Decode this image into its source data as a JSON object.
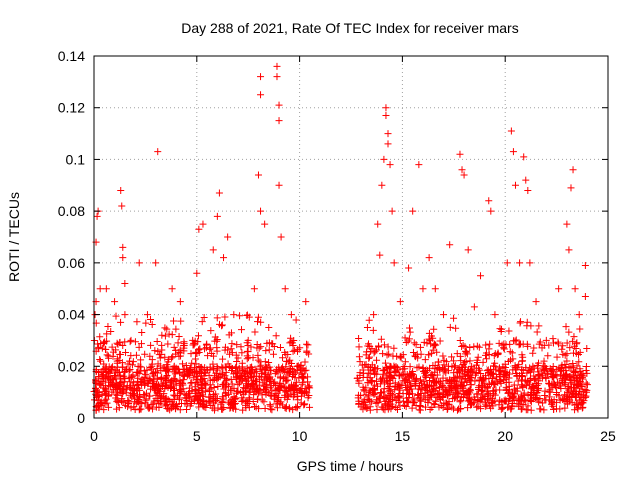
{
  "chart_data": {
    "type": "scatter",
    "title": "Day 288 of 2021, Rate Of TEC Index for receiver mars",
    "xlabel": "GPS time / hours",
    "ylabel": "ROTI / TECUs",
    "xlim": [
      0,
      25
    ],
    "ylim": [
      0,
      0.14
    ],
    "xticks": [
      0,
      5,
      10,
      15,
      20,
      25
    ],
    "yticks": [
      0,
      0.02,
      0.04,
      0.06,
      0.08,
      0.1,
      0.12,
      0.14
    ],
    "xtick_labels": [
      "0",
      "5",
      "10",
      "15",
      "20",
      "25"
    ],
    "ytick_labels": [
      "0",
      "0.02",
      "0.04",
      "0.06",
      "0.08",
      "0.1",
      "0.12",
      "0.14"
    ],
    "grid": true,
    "marker": "+",
    "color": "#ff0000",
    "data_gap_hours": [
      10.5,
      12.8
    ],
    "series": [
      {
        "name": "ROTI",
        "points": [
          [
            0.1,
            0.068
          ],
          [
            0.15,
            0.078
          ],
          [
            0.2,
            0.08
          ],
          [
            0.1,
            0.045
          ],
          [
            0.05,
            0.04
          ],
          [
            0.3,
            0.05
          ],
          [
            0.6,
            0.05
          ],
          [
            1.0,
            0.045
          ],
          [
            1.3,
            0.088
          ],
          [
            1.35,
            0.082
          ],
          [
            1.4,
            0.066
          ],
          [
            1.4,
            0.062
          ],
          [
            1.5,
            0.052
          ],
          [
            1.8,
            0.03
          ],
          [
            2.2,
            0.06
          ],
          [
            2.6,
            0.04
          ],
          [
            3.0,
            0.06
          ],
          [
            3.1,
            0.103
          ],
          [
            3.3,
            0.032
          ],
          [
            3.8,
            0.05
          ],
          [
            4.2,
            0.045
          ],
          [
            4.8,
            0.03
          ],
          [
            5.0,
            0.056
          ],
          [
            5.1,
            0.073
          ],
          [
            5.3,
            0.075
          ],
          [
            5.8,
            0.065
          ],
          [
            6.0,
            0.078
          ],
          [
            6.1,
            0.087
          ],
          [
            6.3,
            0.062
          ],
          [
            6.5,
            0.07
          ],
          [
            6.8,
            0.04
          ],
          [
            7.5,
            0.03
          ],
          [
            7.8,
            0.05
          ],
          [
            8.0,
            0.094
          ],
          [
            8.1,
            0.08
          ],
          [
            8.1,
            0.132
          ],
          [
            8.1,
            0.125
          ],
          [
            8.3,
            0.075
          ],
          [
            8.5,
            0.035
          ],
          [
            8.9,
            0.136
          ],
          [
            8.9,
            0.132
          ],
          [
            9.0,
            0.121
          ],
          [
            9.0,
            0.115
          ],
          [
            9.0,
            0.09
          ],
          [
            9.1,
            0.07
          ],
          [
            9.3,
            0.05
          ],
          [
            9.6,
            0.04
          ],
          [
            10.3,
            0.045
          ],
          [
            13.3,
            0.035
          ],
          [
            13.6,
            0.04
          ],
          [
            13.8,
            0.075
          ],
          [
            13.9,
            0.063
          ],
          [
            14.0,
            0.09
          ],
          [
            14.1,
            0.1
          ],
          [
            14.2,
            0.12
          ],
          [
            14.2,
            0.117
          ],
          [
            14.3,
            0.11
          ],
          [
            14.3,
            0.106
          ],
          [
            14.4,
            0.098
          ],
          [
            14.5,
            0.08
          ],
          [
            14.6,
            0.06
          ],
          [
            14.9,
            0.045
          ],
          [
            15.3,
            0.058
          ],
          [
            15.5,
            0.08
          ],
          [
            15.8,
            0.098
          ],
          [
            16.0,
            0.05
          ],
          [
            16.3,
            0.062
          ],
          [
            16.6,
            0.05
          ],
          [
            17.0,
            0.04
          ],
          [
            17.3,
            0.067
          ],
          [
            17.8,
            0.102
          ],
          [
            17.9,
            0.096
          ],
          [
            18.0,
            0.094
          ],
          [
            18.2,
            0.065
          ],
          [
            18.5,
            0.043
          ],
          [
            18.8,
            0.055
          ],
          [
            19.2,
            0.084
          ],
          [
            19.3,
            0.08
          ],
          [
            19.5,
            0.04
          ],
          [
            20.1,
            0.06
          ],
          [
            20.3,
            0.111
          ],
          [
            20.4,
            0.103
          ],
          [
            20.5,
            0.09
          ],
          [
            20.7,
            0.06
          ],
          [
            20.9,
            0.101
          ],
          [
            21.0,
            0.092
          ],
          [
            21.1,
            0.088
          ],
          [
            21.2,
            0.06
          ],
          [
            21.5,
            0.045
          ],
          [
            22.0,
            0.03
          ],
          [
            22.6,
            0.05
          ],
          [
            23.0,
            0.075
          ],
          [
            23.1,
            0.065
          ],
          [
            23.2,
            0.089
          ],
          [
            23.3,
            0.096
          ],
          [
            23.4,
            0.05
          ],
          [
            23.6,
            0.04
          ],
          [
            23.9,
            0.059
          ],
          [
            23.9,
            0.047
          ]
        ]
      }
    ]
  }
}
